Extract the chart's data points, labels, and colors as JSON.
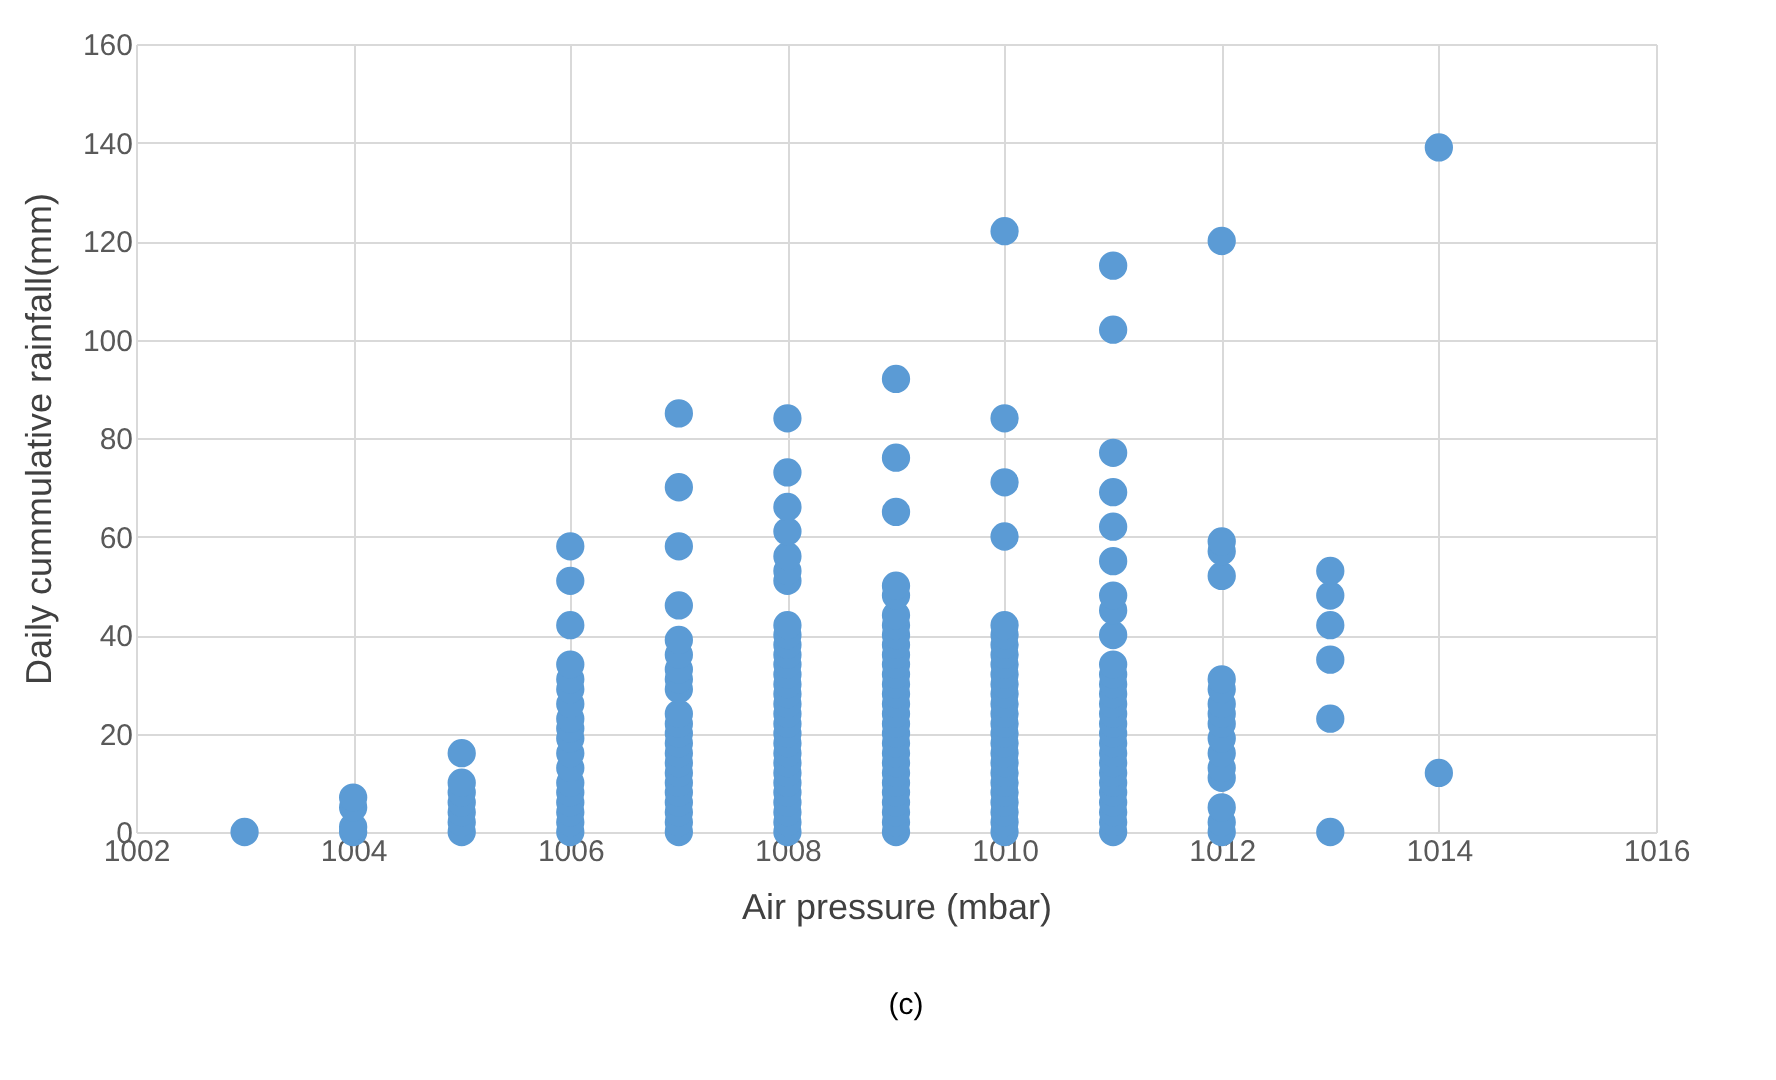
{
  "chart_data": {
    "type": "scatter",
    "xlabel": "Air pressure (mbar)",
    "ylabel": "Daily cummulative rainfall(mm)",
    "x": [
      1003,
      1004,
      1004,
      1004,
      1004,
      1005,
      1005,
      1005,
      1005,
      1005,
      1005,
      1005,
      1006,
      1006,
      1006,
      1006,
      1006,
      1006,
      1006,
      1006,
      1006,
      1006,
      1006,
      1006,
      1006,
      1006,
      1006,
      1006,
      1006,
      1006,
      1007,
      1007,
      1007,
      1007,
      1007,
      1007,
      1007,
      1007,
      1007,
      1007,
      1007,
      1007,
      1007,
      1007,
      1007,
      1007,
      1007,
      1007,
      1007,
      1007,
      1007,
      1007,
      1008,
      1008,
      1008,
      1008,
      1008,
      1008,
      1008,
      1008,
      1008,
      1008,
      1008,
      1008,
      1008,
      1008,
      1008,
      1008,
      1008,
      1008,
      1008,
      1008,
      1008,
      1008,
      1008,
      1008,
      1008,
      1008,
      1008,
      1008,
      1008,
      1009,
      1009,
      1009,
      1009,
      1009,
      1009,
      1009,
      1009,
      1009,
      1009,
      1009,
      1009,
      1009,
      1009,
      1009,
      1009,
      1009,
      1009,
      1009,
      1009,
      1009,
      1009,
      1009,
      1009,
      1009,
      1009,
      1009,
      1009,
      1010,
      1010,
      1010,
      1010,
      1010,
      1010,
      1010,
      1010,
      1010,
      1010,
      1010,
      1010,
      1010,
      1010,
      1010,
      1010,
      1010,
      1010,
      1010,
      1010,
      1010,
      1010,
      1010,
      1010,
      1010,
      1010,
      1011,
      1011,
      1011,
      1011,
      1011,
      1011,
      1011,
      1011,
      1011,
      1011,
      1011,
      1011,
      1011,
      1011,
      1011,
      1011,
      1011,
      1011,
      1011,
      1011,
      1011,
      1011,
      1011,
      1011,
      1011,
      1011,
      1011,
      1012,
      1012,
      1012,
      1012,
      1012,
      1012,
      1012,
      1012,
      1012,
      1012,
      1012,
      1012,
      1012,
      1012,
      1012,
      1012,
      1013,
      1013,
      1013,
      1013,
      1013,
      1013,
      1014,
      1014
    ],
    "values": [
      0,
      0,
      1,
      5,
      7,
      0,
      2,
      4,
      6,
      8,
      10,
      16,
      0,
      2,
      4,
      6,
      8,
      10,
      13,
      16,
      19,
      21,
      23,
      26,
      29,
      31,
      34,
      42,
      51,
      58,
      0,
      2,
      4,
      6,
      8,
      10,
      12,
      14,
      16,
      18,
      20,
      22,
      24,
      29,
      31,
      33,
      36,
      39,
      46,
      58,
      70,
      85,
      0,
      2,
      4,
      6,
      8,
      10,
      12,
      14,
      16,
      18,
      20,
      22,
      24,
      26,
      28,
      30,
      32,
      34,
      36,
      38,
      40,
      42,
      51,
      53,
      56,
      61,
      66,
      73,
      84,
      0,
      2,
      4,
      6,
      8,
      10,
      12,
      14,
      16,
      18,
      20,
      22,
      24,
      26,
      28,
      30,
      32,
      34,
      36,
      38,
      40,
      42,
      44,
      48,
      50,
      65,
      76,
      92,
      0,
      2,
      4,
      6,
      8,
      10,
      12,
      14,
      16,
      18,
      20,
      22,
      24,
      26,
      28,
      30,
      32,
      34,
      36,
      38,
      40,
      42,
      60,
      71,
      84,
      122,
      0,
      2,
      4,
      6,
      8,
      10,
      12,
      14,
      16,
      18,
      20,
      22,
      24,
      26,
      28,
      30,
      32,
      34,
      40,
      45,
      48,
      55,
      62,
      69,
      77,
      102,
      115,
      0,
      2,
      5,
      11,
      13,
      16,
      19,
      22,
      24,
      26,
      29,
      31,
      52,
      57,
      59,
      120,
      0,
      23,
      35,
      42,
      48,
      53,
      12,
      139
    ],
    "color": "#5b9bd5",
    "marker": "circle",
    "grid": true,
    "xlim": [
      1002,
      1016
    ],
    "xticks": [
      1002,
      1004,
      1006,
      1008,
      1010,
      1012,
      1014,
      1016
    ],
    "ylim": [
      0,
      160
    ],
    "yticks": [
      0,
      20,
      40,
      60,
      80,
      100,
      120,
      140,
      160
    ],
    "annotations": [
      "(c)"
    ]
  }
}
